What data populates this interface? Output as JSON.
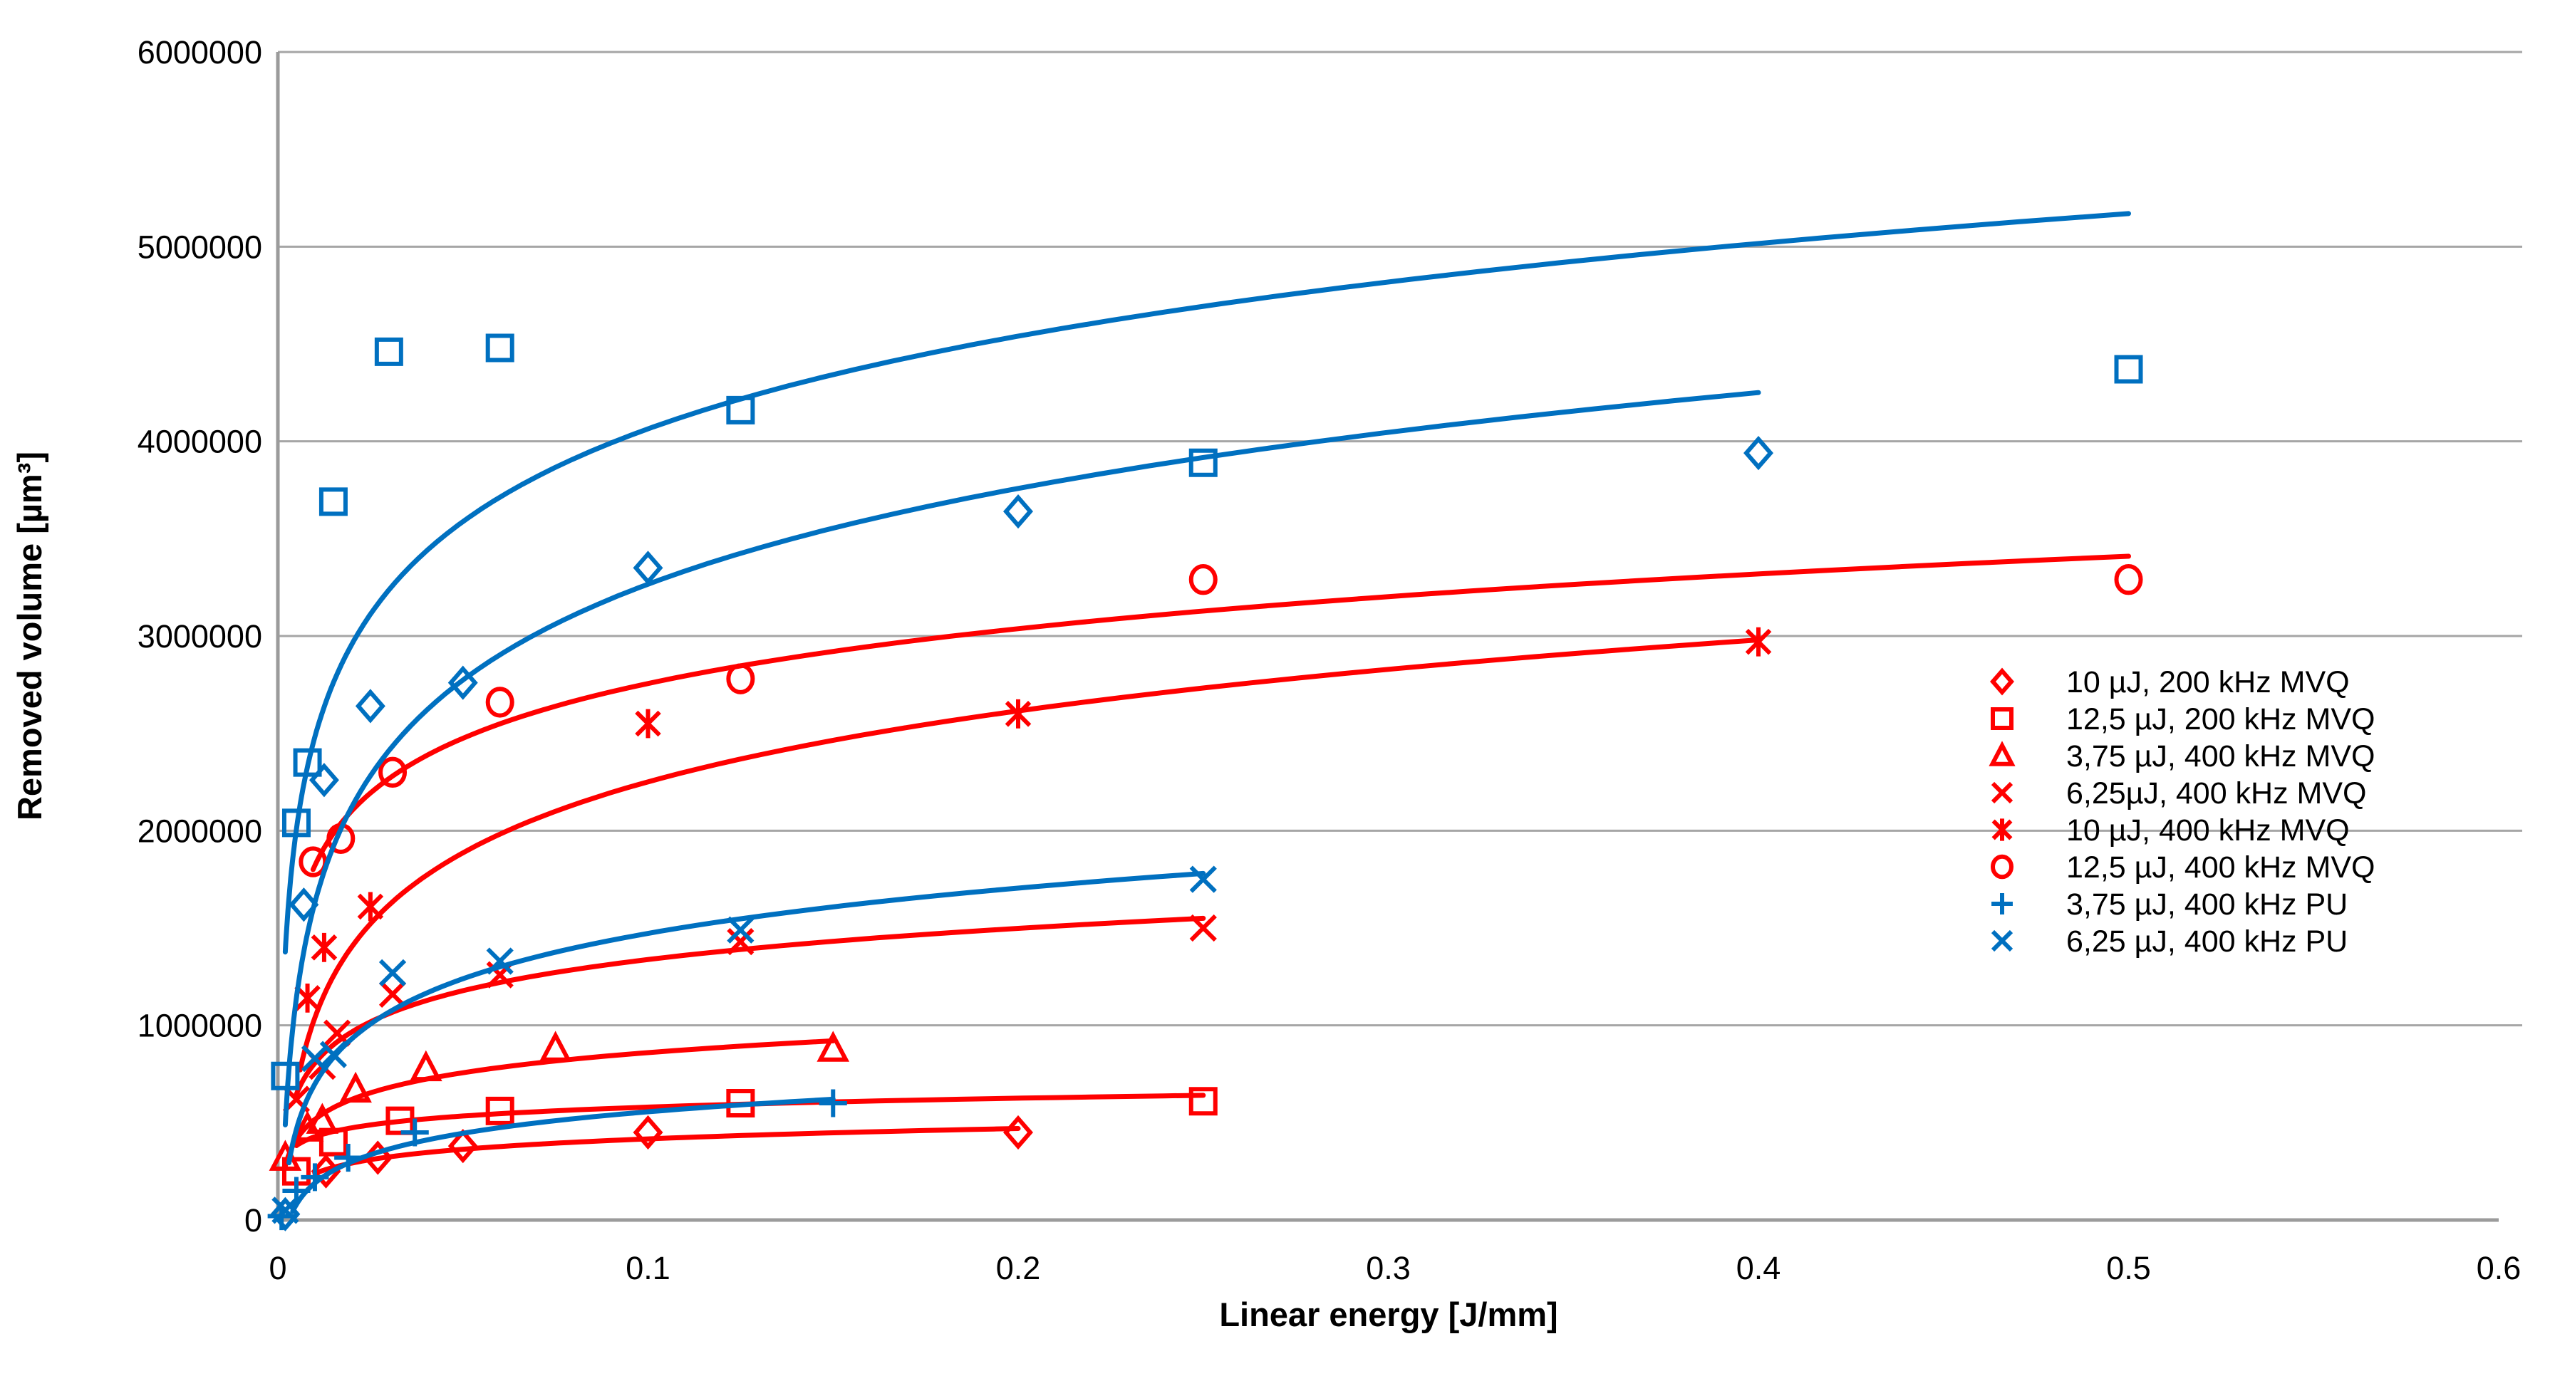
{
  "chart_data": {
    "type": "scatter",
    "title": "",
    "xlabel": "Linear energy [J/mm]",
    "ylabel": "Removed volume [µm³]",
    "xlim": [
      0,
      0.6
    ],
    "ylim": [
      0,
      6000000
    ],
    "x_ticks": [
      "0",
      "0.1",
      "0.2",
      "0.3",
      "0.4",
      "0.5",
      "0.6"
    ],
    "x_tick_values": [
      0,
      0.1,
      0.2,
      0.3,
      0.4,
      0.5,
      0.6
    ],
    "y_ticks": [
      "0",
      "1000000",
      "2000000",
      "3000000",
      "4000000",
      "5000000",
      "6000000"
    ],
    "y_tick_values": [
      0,
      1000000,
      2000000,
      3000000,
      4000000,
      5000000,
      6000000
    ],
    "grid": "horizontal-gridlines-on",
    "legend_position": "right",
    "colors": {
      "mvq_red": "#FF0000",
      "pu_blue": "#0070C0",
      "grid_gray": "#A6A6A6",
      "axis_gray": "#9B9B9B",
      "text_black": "#000000"
    },
    "series": [
      {
        "id": "mvq-10uJ-200kHz",
        "legend_label": "10 µJ, 200 kHz MVQ",
        "color_key": "mvq_red",
        "marker": "diamond",
        "points": [
          [
            0.013,
            250000
          ],
          [
            0.027,
            320000
          ],
          [
            0.05,
            380000
          ],
          [
            0.1,
            450000
          ],
          [
            0.2,
            450000
          ]
        ],
        "trend": {
          "type": "log",
          "c": 77000,
          "d": 594000,
          "x_range": [
            0.01,
            0.2
          ]
        }
      },
      {
        "id": "mvq-12.5uJ-200kHz",
        "legend_label": "12,5 µJ, 200 kHz MVQ",
        "color_key": "mvq_red",
        "marker": "square",
        "points": [
          [
            0.005,
            250000
          ],
          [
            0.015,
            400000
          ],
          [
            0.033,
            510000
          ],
          [
            0.06,
            560000
          ],
          [
            0.125,
            600000
          ],
          [
            0.25,
            610000
          ]
        ],
        "trend": {
          "type": "log",
          "c": 66000,
          "d": 732000,
          "x_range": [
            0.005,
            0.25
          ]
        }
      },
      {
        "id": "mvq-3.75uJ-400kHz",
        "legend_label": "3,75 µJ, 400 kHz MVQ",
        "color_key": "mvq_red",
        "marker": "triangle",
        "points": [
          [
            0.002,
            320000
          ],
          [
            0.008,
            470000
          ],
          [
            0.012,
            510000
          ],
          [
            0.021,
            670000
          ],
          [
            0.04,
            780000
          ],
          [
            0.075,
            880000
          ],
          [
            0.15,
            880000
          ]
        ],
        "trend": {
          "type": "log",
          "c": 149000,
          "d": 1203000,
          "x_range": [
            0.002,
            0.15
          ]
        }
      },
      {
        "id": "mvq-6.25uJ-400kHz",
        "legend_label": "6,25µJ, 400 kHz MVQ",
        "color_key": "mvq_red",
        "marker": "x",
        "points": [
          [
            0.005,
            620000
          ],
          [
            0.012,
            790000
          ],
          [
            0.016,
            960000
          ],
          [
            0.031,
            1160000
          ],
          [
            0.06,
            1260000
          ],
          [
            0.125,
            1430000
          ],
          [
            0.25,
            1500000
          ]
        ],
        "trend": {
          "type": "log",
          "c": 231000,
          "d": 1870000,
          "x_range": [
            0.005,
            0.25
          ]
        }
      },
      {
        "id": "mvq-10uJ-400kHz",
        "legend_label": "10 µJ, 400 kHz MVQ",
        "color_key": "mvq_red",
        "marker": "star",
        "points": [
          [
            0.008,
            1140000
          ],
          [
            0.0125,
            1400000
          ],
          [
            0.025,
            1610000
          ],
          [
            0.1,
            2550000
          ],
          [
            0.2,
            2600000
          ],
          [
            0.4,
            2970000
          ]
        ],
        "trend": {
          "type": "log",
          "c": 526000,
          "d": 3462000,
          "x_range": [
            0.006,
            0.4
          ]
        }
      },
      {
        "id": "mvq-12.5uJ-400kHz",
        "legend_label": "12,5  µJ, 400 kHz MVQ",
        "color_key": "mvq_red",
        "marker": "circle",
        "points": [
          [
            0.0095,
            1840000
          ],
          [
            0.017,
            1960000
          ],
          [
            0.031,
            2300000
          ],
          [
            0.06,
            2660000
          ],
          [
            0.125,
            2780000
          ],
          [
            0.25,
            3290000
          ],
          [
            0.5,
            3290000
          ]
        ],
        "trend": {
          "type": "log",
          "c": 406000,
          "d": 3691000,
          "x_range": [
            0.0095,
            0.5
          ]
        }
      },
      {
        "id": "pu-3.75uJ-400kHz",
        "legend_label": "3,75 µJ, 400 kHz PU",
        "color_key": "pu_blue",
        "marker": "plus",
        "points": [
          [
            0.001,
            20000
          ],
          [
            0.005,
            150000
          ],
          [
            0.01,
            220000
          ],
          [
            0.019,
            320000
          ],
          [
            0.037,
            450000
          ],
          [
            0.15,
            600000
          ]
        ],
        "trend": {
          "type": "log",
          "c": 159000,
          "d": 922000,
          "x_range": [
            0.004,
            0.15
          ]
        }
      },
      {
        "id": "pu-6.25uJ-400kHz",
        "legend_label": "6,25 µJ, 400 kHz PU",
        "color_key": "pu_blue",
        "marker": "x",
        "points": [
          [
            0.002,
            50000
          ],
          [
            0.01,
            830000
          ],
          [
            0.015,
            850000
          ],
          [
            0.031,
            1270000
          ],
          [
            0.06,
            1330000
          ],
          [
            0.125,
            1490000
          ],
          [
            0.25,
            1750000
          ]
        ],
        "trend": {
          "type": "log",
          "c": 336000,
          "d": 2246000,
          "x_range": [
            0.003,
            0.25
          ]
        }
      },
      {
        "id": "pu-diamond-unlabeled",
        "legend_label": null,
        "color_key": "pu_blue",
        "marker": "diamond",
        "points": [
          [
            0.002,
            30000
          ],
          [
            0.007,
            1620000
          ],
          [
            0.0125,
            2260000
          ],
          [
            0.025,
            2640000
          ],
          [
            0.05,
            2760000
          ],
          [
            0.1,
            3350000
          ],
          [
            0.2,
            3640000
          ],
          [
            0.4,
            3940000
          ]
        ],
        "trend": {
          "type": "log",
          "c": 710000,
          "d": 4901000,
          "x_range": [
            0.002,
            0.4
          ]
        }
      },
      {
        "id": "pu-square-unlabeled",
        "legend_label": null,
        "color_key": "pu_blue",
        "marker": "square",
        "points": [
          [
            0.002,
            740000
          ],
          [
            0.005,
            2040000
          ],
          [
            0.008,
            2350000
          ],
          [
            0.015,
            3690000
          ],
          [
            0.03,
            4460000
          ],
          [
            0.06,
            4480000
          ],
          [
            0.125,
            4160000
          ],
          [
            0.25,
            3890000
          ],
          [
            0.5,
            4370000
          ]
        ],
        "trend": {
          "type": "log",
          "c": 687000,
          "d": 5646000,
          "x_range": [
            0.002,
            0.5
          ]
        }
      }
    ]
  }
}
